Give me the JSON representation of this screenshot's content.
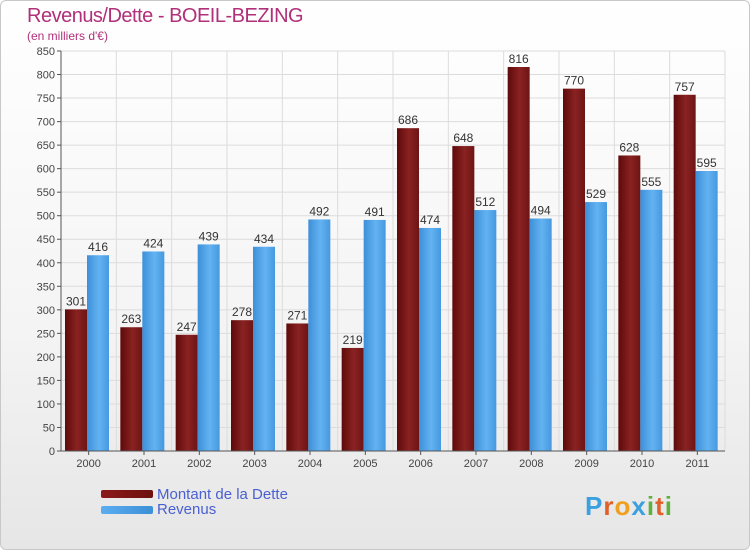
{
  "chart_data": {
    "type": "bar",
    "title": "Revenus/Dette - BOEIL-BEZING",
    "subtitle": "(en milliers d'€)",
    "categories": [
      "2000",
      "2001",
      "2002",
      "2003",
      "2004",
      "2005",
      "2006",
      "2007",
      "2008",
      "2009",
      "2010",
      "2011"
    ],
    "series": [
      {
        "name": "Montant de la Dette",
        "color": "#7a1515",
        "values": [
          301,
          263,
          247,
          278,
          271,
          219,
          686,
          648,
          816,
          770,
          628,
          757
        ]
      },
      {
        "name": "Revenus",
        "color": "#4fa3e8",
        "values": [
          416,
          424,
          439,
          434,
          492,
          491,
          474,
          512,
          494,
          529,
          555,
          595
        ]
      }
    ],
    "ylim": [
      0,
      850
    ],
    "ytick_step": 50,
    "grid": true,
    "xlabel": "",
    "ylabel": ""
  },
  "legend": {
    "debt_label": "Montant de la Dette",
    "revenue_label": "Revenus"
  },
  "brand": {
    "name": "Proxiti",
    "letters": [
      "P",
      "r",
      "o",
      "x",
      "i",
      "t",
      "i"
    ],
    "letter_colors": [
      "#3aa0e0",
      "#e0602a",
      "#f0a020",
      "#3aa0e0",
      "#60b040",
      "#e0602a",
      "#60b040"
    ]
  }
}
